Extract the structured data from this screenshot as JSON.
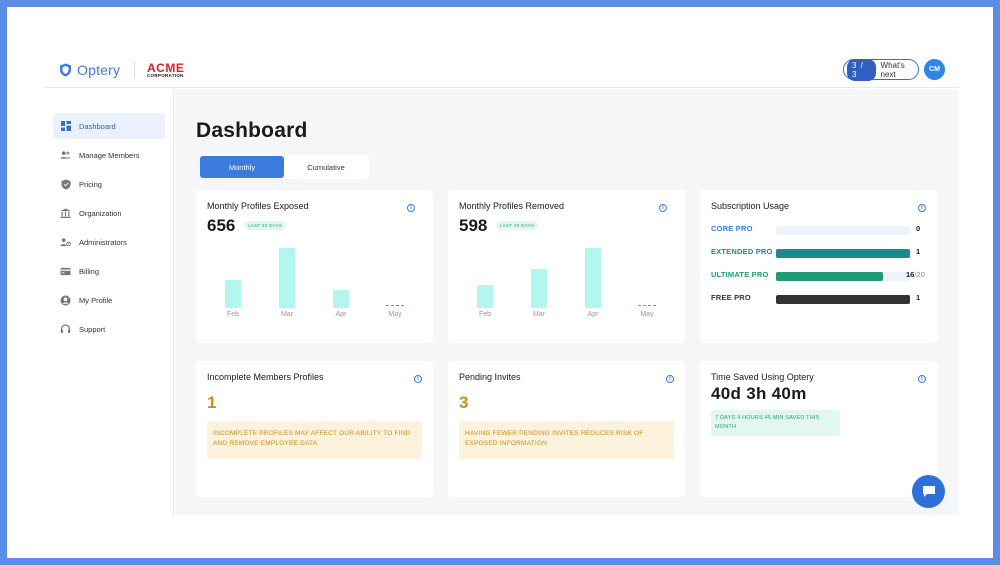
{
  "header": {
    "logo_text": "Optery",
    "partner_name": "ACME",
    "partner_sub": "CORPORATION",
    "whats_new_badge": "3 / 3",
    "whats_new_label": "What's next",
    "avatar_initials": "CM"
  },
  "sidebar": {
    "items": [
      {
        "label": "Dashboard",
        "icon": "dashboard-icon",
        "active": true
      },
      {
        "label": "Manage Members",
        "icon": "members-icon"
      },
      {
        "label": "Pricing",
        "icon": "shield-icon"
      },
      {
        "label": "Organization",
        "icon": "building-icon"
      },
      {
        "label": "Administrators",
        "icon": "admin-icon"
      },
      {
        "label": "Billing",
        "icon": "card-icon"
      },
      {
        "label": "My Profile",
        "icon": "profile-icon"
      },
      {
        "label": "Support",
        "icon": "headset-icon"
      }
    ]
  },
  "main": {
    "title": "Dashboard",
    "tabs": [
      {
        "label": "Monthly",
        "active": true
      },
      {
        "label": "Cumulative"
      }
    ]
  },
  "cards": {
    "exposed": {
      "title": "Monthly Profiles Exposed",
      "value": "656",
      "period": "LAST 30 DAYS"
    },
    "removed": {
      "title": "Monthly Profiles Removed",
      "value": "598",
      "period": "LAST 30 DAYS"
    },
    "subscription": {
      "title": "Subscription Usage",
      "rows": [
        {
          "name": "CORE PRO",
          "count": "0",
          "of": "",
          "color": "#2f7fd8",
          "fill": 0
        },
        {
          "name": "EXTENDED PRO",
          "count": "1",
          "of": "",
          "color": "#1a8a8a",
          "fill": 1.0
        },
        {
          "name": "ULTIMATE PRO",
          "count": "16",
          "of": "/20",
          "color": "#1f9a72",
          "fill": 0.8
        },
        {
          "name": "FREE PRO",
          "count": "1",
          "of": "",
          "color": "#333333",
          "fill": 1.0
        }
      ]
    },
    "incomplete": {
      "title": "Incomplete Members Profiles",
      "value": "1",
      "message": "INCOMPLETE PROFILES MAY AFFECT OUR ABILITY TO FIND AND REMOVE EMPLOYEE DATA"
    },
    "pending": {
      "title": "Pending Invites",
      "value": "3",
      "message": "HAVING FEWER PENDING INVITES REDUCES RISK OF EXPOSED INFORMATION"
    },
    "time_saved": {
      "title": "Time Saved Using Optery",
      "value": "40d 3h 40m",
      "message": "7 DAYS 4 HOURS 45 MIN SAVED THIS MONTH"
    }
  },
  "chart_data": [
    {
      "type": "bar",
      "title": "Monthly Profiles Exposed",
      "categories": [
        "Feb",
        "Mar",
        "Apr",
        "May"
      ],
      "values": [
        27,
        58,
        17,
        0
      ],
      "color": "#b3f5ef"
    },
    {
      "type": "bar",
      "title": "Monthly Profiles Removed",
      "categories": [
        "Feb",
        "Mar",
        "Apr",
        "May"
      ],
      "values": [
        22,
        38,
        58,
        0
      ],
      "color": "#b3f5ef"
    }
  ]
}
